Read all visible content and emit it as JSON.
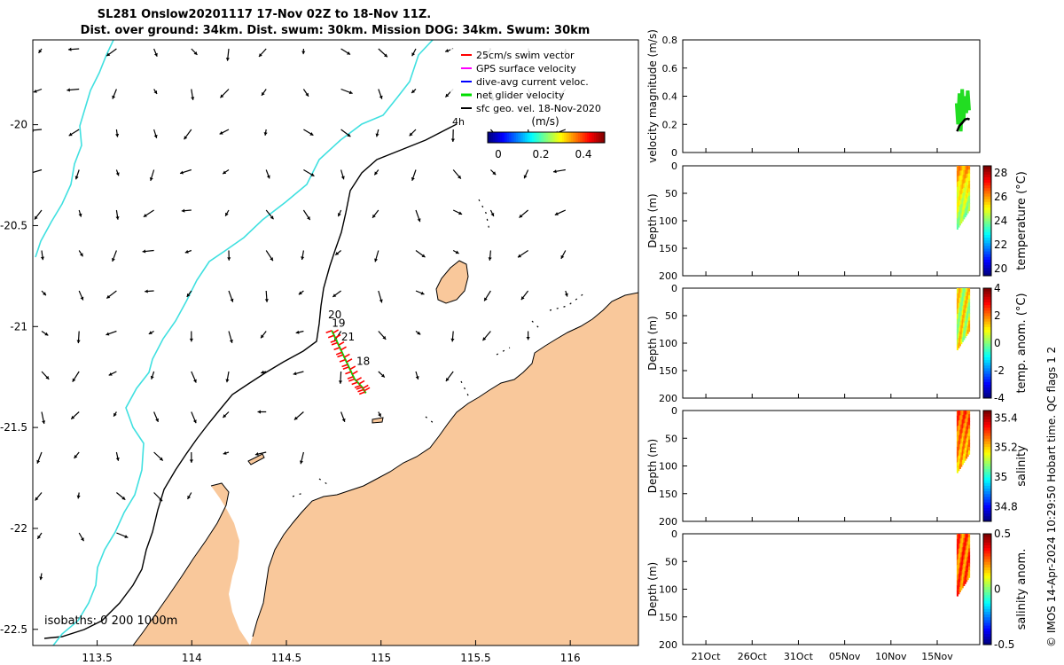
{
  "chart_data": {
    "type": "map",
    "title": {
      "line1": "SL281 Onslow20201117 17-Nov 02Z to 18-Nov 11Z.",
      "line2": "Dist. over ground: 34km. Dist. swum: 30km. Mission DOG: 34km. Swum: 30km"
    },
    "map": {
      "x_ticks": [
        "113.5",
        "114",
        "114.5",
        "115",
        "115.5",
        "116"
      ],
      "x_values": [
        113.5,
        114,
        114.5,
        115,
        115.5,
        116
      ],
      "y_ticks": [
        "-20",
        "-20.5",
        "-21",
        "-21.5",
        "-22",
        "-22.5"
      ],
      "y_values": [
        -20,
        -20.5,
        -21,
        -21.5,
        -22,
        -22.5
      ],
      "xlim": [
        113.16,
        116.36
      ],
      "ylim": [
        -22.58,
        -19.58
      ],
      "legend": [
        {
          "label": "25cm/s swim vector",
          "color": "#ff0000"
        },
        {
          "label": "GPS surface velocity",
          "color": "#ff00ff"
        },
        {
          "label": "dive-avg current veloc.",
          "color": "#0000ff"
        },
        {
          "label": "net glider velocity",
          "color": "#00dd00"
        },
        {
          "label": "sfc geo. vel. 18-Nov-2020",
          "color": "#000000"
        }
      ],
      "reference_label": "4h",
      "colorbar": {
        "label": "(m/s)",
        "ticks": [
          "0",
          "0.2",
          "0.4"
        ],
        "values": [
          0,
          0.2,
          0.4
        ],
        "range": [
          -0.05,
          0.5
        ]
      },
      "isobaths_label": "isobaths: 0   200  1000m",
      "track_labels": [
        {
          "text": "20",
          "lon": 114.72,
          "lat": -20.96
        },
        {
          "text": "19",
          "lon": 114.74,
          "lat": -21.0
        },
        {
          "text": "21",
          "lon": 114.79,
          "lat": -21.07
        },
        {
          "text": "18",
          "lon": 114.87,
          "lat": -21.19
        }
      ],
      "track": [
        [
          114.74,
          -21.02
        ],
        [
          114.77,
          -21.08
        ],
        [
          114.8,
          -21.14
        ],
        [
          114.83,
          -21.2
        ],
        [
          114.86,
          -21.26
        ],
        [
          114.9,
          -21.3
        ],
        [
          114.92,
          -21.33
        ]
      ],
      "land_color": "#f9c89b",
      "isobath_200_color": "#000000",
      "isobath_1000_color": "#40e0e0"
    },
    "panels": [
      {
        "name": "velocity",
        "ylabel": "velocity magnitude (m/s)",
        "yticks": [
          "0",
          "0.2",
          "0.4",
          "0.6",
          "0.8"
        ],
        "yvalues": [
          0,
          0.2,
          0.4,
          0.6,
          0.8
        ],
        "ylim": [
          0,
          0.8
        ]
      },
      {
        "name": "temperature",
        "ylabel": "Depth (m)",
        "yticks": [
          "0",
          "50",
          "100",
          "150",
          "200"
        ],
        "yvalues": [
          0,
          50,
          100,
          150,
          200
        ],
        "ylim": [
          0,
          200
        ],
        "cbar_label": "temperature (°C)",
        "cbar_ticks": [
          "20",
          "22",
          "24",
          "26",
          "28"
        ],
        "cbar_values": [
          20,
          22,
          24,
          26,
          28
        ],
        "cbar_range": [
          19.4,
          28.6
        ],
        "max_depth_start": 115,
        "max_depth_end": 78
      },
      {
        "name": "temp_anom",
        "ylabel": "Depth (m)",
        "yticks": [
          "0",
          "50",
          "100",
          "150",
          "200"
        ],
        "yvalues": [
          0,
          50,
          100,
          150,
          200
        ],
        "ylim": [
          0,
          200
        ],
        "cbar_label": "temp. anom. (°C)",
        "cbar_ticks": [
          "-4",
          "-2",
          "0",
          "2",
          "4"
        ],
        "cbar_values": [
          -4,
          -2,
          0,
          2,
          4
        ],
        "cbar_range": [
          -4,
          4
        ],
        "max_depth_start": 112,
        "max_depth_end": 75
      },
      {
        "name": "salinity",
        "ylabel": "Depth (m)",
        "yticks": [
          "0",
          "50",
          "100",
          "150",
          "200"
        ],
        "yvalues": [
          0,
          50,
          100,
          150,
          200
        ],
        "ylim": [
          0,
          200
        ],
        "cbar_label": "salinity",
        "cbar_ticks": [
          "34.8",
          "35",
          "35.2",
          "35.4"
        ],
        "cbar_values": [
          34.8,
          35,
          35.2,
          35.4
        ],
        "cbar_range": [
          34.7,
          35.45
        ],
        "max_depth_start": 112,
        "max_depth_end": 75
      },
      {
        "name": "sal_anom",
        "ylabel": "Depth (m)",
        "yticks": [
          "0",
          "50",
          "100",
          "150",
          "200"
        ],
        "yvalues": [
          0,
          50,
          100,
          150,
          200
        ],
        "ylim": [
          0,
          200
        ],
        "cbar_label": "salinity anom.",
        "cbar_ticks": [
          "-0.5",
          "0",
          "0.5"
        ],
        "cbar_values": [
          -0.5,
          0,
          0.5
        ],
        "cbar_range": [
          -0.5,
          0.5
        ],
        "max_depth_start": 112,
        "max_depth_end": 75
      }
    ],
    "time_axis": {
      "ticks": [
        "21Oct",
        "26Oct",
        "31Oct",
        "05Nov",
        "10Nov",
        "15Nov"
      ],
      "values": [
        0,
        5,
        10,
        15,
        20,
        25
      ],
      "xlim": [
        -2.5,
        29.6
      ],
      "data_start": 27.1,
      "data_end": 28.5
    },
    "velocity_series": {
      "net_glider": [
        [
          27.1,
          0.35
        ],
        [
          27.25,
          0.2
        ],
        [
          27.4,
          0.42
        ],
        [
          27.55,
          0.15
        ],
        [
          27.7,
          0.45
        ],
        [
          27.85,
          0.22
        ],
        [
          28.0,
          0.4
        ],
        [
          28.15,
          0.28
        ],
        [
          28.3,
          0.44
        ],
        [
          28.45,
          0.3
        ]
      ],
      "geostrophic": [
        [
          27.15,
          0.15
        ],
        [
          27.4,
          0.19
        ],
        [
          27.7,
          0.21
        ],
        [
          28.0,
          0.235
        ],
        [
          28.3,
          0.24
        ],
        [
          28.5,
          0.235
        ]
      ]
    },
    "footer": "© IMOS 14-Apr-2024 10:29:50 Hobart time. QC flags 1  2"
  }
}
